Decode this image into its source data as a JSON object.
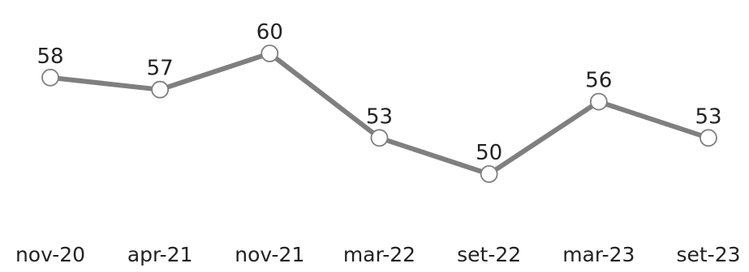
{
  "chart_data": {
    "type": "line",
    "categories": [
      "nov-20",
      "apr-21",
      "nov-21",
      "mar-22",
      "set-22",
      "mar-23",
      "set-23"
    ],
    "series": [
      {
        "values": [
          58,
          57,
          60,
          53,
          50,
          56,
          53
        ],
        "color": "#7f7f7f",
        "marker": "circle",
        "marker_fill": "#ffffff"
      }
    ],
    "title": "",
    "xlabel": "",
    "ylabel": "",
    "data_labels": true,
    "grid": false,
    "legend": "none"
  }
}
